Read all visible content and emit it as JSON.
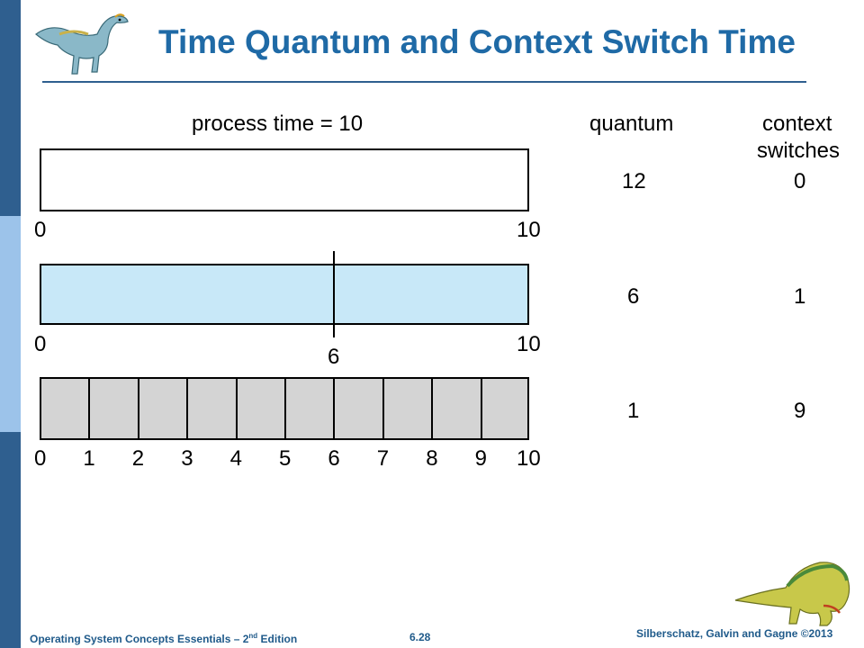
{
  "slide": {
    "title": "Time Quantum and Context Switch Time",
    "process_time_label": "process time = 10",
    "headers": {
      "quantum": "quantum",
      "context_line1": "context",
      "context_line2": "switches"
    },
    "rows": [
      {
        "quantum": "12",
        "context_switches": "0",
        "ticks": [
          "0",
          "10"
        ]
      },
      {
        "quantum": "6",
        "context_switches": "1",
        "ticks": [
          "0",
          "6",
          "10"
        ]
      },
      {
        "quantum": "1",
        "context_switches": "9",
        "ticks": [
          "0",
          "1",
          "2",
          "3",
          "4",
          "5",
          "6",
          "7",
          "8",
          "9",
          "10"
        ]
      }
    ]
  },
  "footer": {
    "book_prefix": "Operating System Concepts Essentials – 2",
    "book_sup": "nd",
    "book_suffix": " Edition",
    "page_number": "6.28",
    "copyright": "Silberschatz, Galvin and Gagne ©2013"
  },
  "colors": {
    "title": "#1f6aa6",
    "band_dark": "#2f5f8f",
    "band_light": "#9cc3ea",
    "bar_blue": "#c8e8f8",
    "bar_gray": "#d4d4d4"
  }
}
